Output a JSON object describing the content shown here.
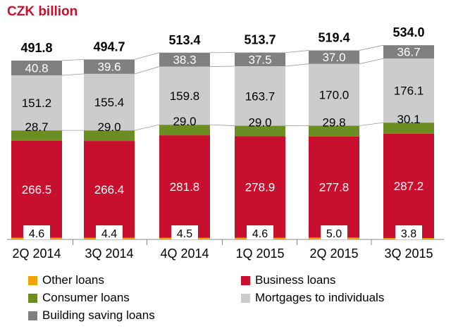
{
  "chart_data": {
    "type": "bar",
    "stacked": true,
    "title": "CZK billion",
    "categories": [
      "2Q 2014",
      "3Q 2014",
      "4Q 2014",
      "1Q 2015",
      "2Q 2015",
      "3Q 2015"
    ],
    "totals": [
      "491.8",
      "494.7",
      "513.4",
      "513.7",
      "519.4",
      "534.0"
    ],
    "series": [
      {
        "name": "Other loans",
        "color": "#f0a30a",
        "values": [
          4.6,
          4.4,
          4.5,
          4.6,
          5.0,
          3.8
        ],
        "labels": [
          "4.6",
          "4.4",
          "4.5",
          "4.6",
          "5.0",
          "3.8"
        ]
      },
      {
        "name": "Business loans",
        "color": "#c8102e",
        "values": [
          266.5,
          266.4,
          281.8,
          278.9,
          277.8,
          287.2
        ],
        "labels": [
          "266.5",
          "266.4",
          "281.8",
          "278.9",
          "277.8",
          "287.2"
        ]
      },
      {
        "name": "Consumer loans",
        "color": "#6b8e23",
        "values": [
          28.7,
          29.0,
          29.0,
          29.0,
          29.8,
          30.1
        ],
        "labels": [
          "28.7",
          "29.0",
          "29.0",
          "29.0",
          "29.8",
          "30.1"
        ]
      },
      {
        "name": "Mortgages to individuals",
        "color": "#cccccc",
        "values": [
          151.2,
          155.4,
          159.8,
          163.7,
          170.0,
          176.1
        ],
        "labels": [
          "151.2",
          "155.4",
          "159.8",
          "163.7",
          "170.0",
          "176.1"
        ]
      },
      {
        "name": "Building saving loans",
        "color": "#808080",
        "values": [
          40.8,
          39.6,
          38.3,
          37.5,
          37.0,
          36.7
        ],
        "labels": [
          "40.8",
          "39.6",
          "38.3",
          "37.5",
          "37.0",
          "36.7"
        ]
      }
    ],
    "legend_position": "bottom",
    "grid": false
  }
}
